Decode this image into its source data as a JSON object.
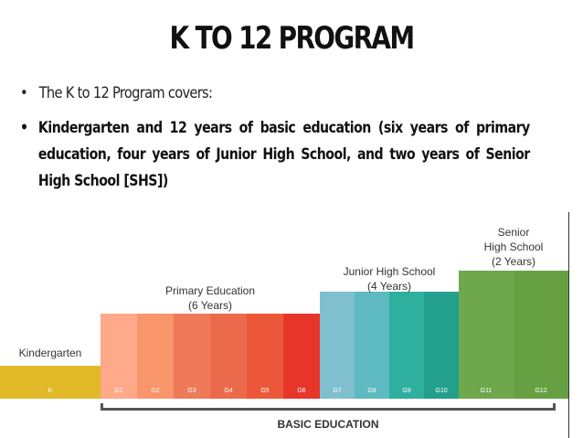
{
  "title": "K TO 12 PROGRAM",
  "bullets": [
    {
      "text": "The K to 12 Program covers:"
    },
    {
      "text": "Kindergarten and 12 years of basic education (six years of primary education, four years of Junior High School, and two years of Senior High School [SHS])"
    }
  ],
  "bullet_glyph": "•",
  "diagram": {
    "stages": {
      "kindergarten": "Kindergarten",
      "primary": [
        "Primary Education",
        "(6 Years)"
      ],
      "junior": [
        "Junior High School",
        "(4 Years)"
      ],
      "senior": [
        "Senior",
        "High School",
        "(2 Years)"
      ]
    },
    "grades": [
      {
        "label": "K",
        "color": "#e2b928"
      },
      {
        "label": "G1",
        "color": "#fda98a"
      },
      {
        "label": "G2",
        "color": "#f8956a"
      },
      {
        "label": "G3",
        "color": "#ee7a5a"
      },
      {
        "label": "G4",
        "color": "#ec6a4c"
      },
      {
        "label": "G5",
        "color": "#eb5738"
      },
      {
        "label": "G6",
        "color": "#e8352a"
      },
      {
        "label": "G7",
        "color": "#7fbfce"
      },
      {
        "label": "G8",
        "color": "#5cbac0"
      },
      {
        "label": "G9",
        "color": "#2faf9e"
      },
      {
        "label": "G10",
        "color": "#22a08c"
      },
      {
        "label": "G11",
        "color": "#6ea74c"
      },
      {
        "label": "G12",
        "color": "#67a042"
      }
    ],
    "basic_education": "BASIC EDUCATION"
  }
}
